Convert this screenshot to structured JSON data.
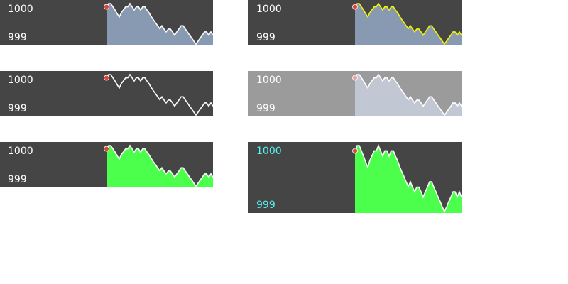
{
  "chart_data": [
    {
      "type": "area",
      "max_label": "1000",
      "min_label": "999",
      "ylim": [
        999,
        1000
      ],
      "fill": "#8899b2",
      "line": "#ffffff",
      "label_color": "#ffffff",
      "background": "#454545",
      "marker_color": "#e0443c",
      "y": [
        0.92,
        1.0,
        1.0,
        0.92,
        0.84,
        0.75,
        0.67,
        0.78,
        0.85,
        0.92,
        0.92,
        1.0,
        0.92,
        0.84,
        0.92,
        0.92,
        0.84,
        0.92,
        0.92,
        0.84,
        0.77,
        0.68,
        0.6,
        0.53,
        0.45,
        0.38,
        0.45,
        0.37,
        0.3,
        0.37,
        0.37,
        0.3,
        0.22,
        0.3,
        0.37,
        0.45,
        0.45,
        0.37,
        0.3,
        0.22,
        0.15,
        0.07,
        0.0,
        0.07,
        0.15,
        0.22,
        0.3,
        0.3,
        0.22,
        0.3,
        0.22
      ]
    },
    {
      "type": "area",
      "max_label": "1000",
      "min_label": "999",
      "ylim": [
        999,
        1000
      ],
      "fill": "#8899b2",
      "line": "#f5f50a",
      "label_color": "#ffffff",
      "background": "#454545",
      "marker_color": "#e0443c",
      "y": [
        0.92,
        1.0,
        1.0,
        0.92,
        0.84,
        0.75,
        0.67,
        0.78,
        0.85,
        0.92,
        0.92,
        1.0,
        0.92,
        0.84,
        0.92,
        0.92,
        0.84,
        0.92,
        0.92,
        0.84,
        0.77,
        0.68,
        0.6,
        0.53,
        0.45,
        0.38,
        0.45,
        0.37,
        0.3,
        0.37,
        0.37,
        0.3,
        0.22,
        0.3,
        0.37,
        0.45,
        0.45,
        0.37,
        0.3,
        0.22,
        0.15,
        0.07,
        0.0,
        0.07,
        0.15,
        0.22,
        0.3,
        0.3,
        0.22,
        0.3,
        0.22
      ]
    },
    {
      "type": "line",
      "max_label": "1000",
      "min_label": "999",
      "ylim": [
        999,
        1000
      ],
      "fill": "none",
      "line": "#ffffff",
      "label_color": "#ffffff",
      "background": "#454545",
      "marker_color": "#e0443c",
      "y": [
        0.92,
        1.0,
        1.0,
        0.92,
        0.84,
        0.75,
        0.67,
        0.78,
        0.85,
        0.92,
        0.92,
        1.0,
        0.92,
        0.84,
        0.92,
        0.92,
        0.84,
        0.92,
        0.92,
        0.84,
        0.77,
        0.68,
        0.6,
        0.53,
        0.45,
        0.38,
        0.45,
        0.37,
        0.3,
        0.37,
        0.37,
        0.3,
        0.22,
        0.3,
        0.37,
        0.45,
        0.45,
        0.37,
        0.3,
        0.22,
        0.15,
        0.07,
        0.0,
        0.07,
        0.15,
        0.22,
        0.3,
        0.3,
        0.22,
        0.3,
        0.22
      ]
    },
    {
      "type": "area",
      "max_label": "1000",
      "min_label": "999",
      "ylim": [
        999,
        1000
      ],
      "fill": "#c1c8d4",
      "line": "#ffffff",
      "label_color": "#ffffff",
      "background": "#9b9b9b",
      "marker_color": "#f0a0a0",
      "y": [
        0.92,
        1.0,
        1.0,
        0.92,
        0.84,
        0.75,
        0.67,
        0.78,
        0.85,
        0.92,
        0.92,
        1.0,
        0.92,
        0.84,
        0.92,
        0.92,
        0.84,
        0.92,
        0.92,
        0.84,
        0.77,
        0.68,
        0.6,
        0.53,
        0.45,
        0.38,
        0.45,
        0.37,
        0.3,
        0.37,
        0.37,
        0.3,
        0.22,
        0.3,
        0.37,
        0.45,
        0.45,
        0.37,
        0.3,
        0.22,
        0.15,
        0.07,
        0.0,
        0.07,
        0.15,
        0.22,
        0.3,
        0.3,
        0.22,
        0.3,
        0.22
      ]
    },
    {
      "type": "area",
      "max_label": "1000",
      "min_label": "999",
      "ylim": [
        999,
        1000
      ],
      "fill": "#4cff4c",
      "line": "#ffffff",
      "label_color": "#ffffff",
      "background": "#454545",
      "marker_color": "#e0443c",
      "y": [
        0.92,
        1.0,
        1.0,
        0.92,
        0.84,
        0.75,
        0.67,
        0.78,
        0.85,
        0.92,
        0.92,
        1.0,
        0.92,
        0.84,
        0.92,
        0.92,
        0.84,
        0.92,
        0.92,
        0.84,
        0.77,
        0.68,
        0.6,
        0.53,
        0.45,
        0.38,
        0.45,
        0.37,
        0.3,
        0.37,
        0.37,
        0.3,
        0.22,
        0.3,
        0.37,
        0.45,
        0.45,
        0.37,
        0.3,
        0.22,
        0.15,
        0.07,
        0.0,
        0.07,
        0.15,
        0.22,
        0.3,
        0.3,
        0.22,
        0.3,
        0.22
      ]
    },
    {
      "type": "area",
      "max_label": "1000",
      "min_label": "999",
      "ylim": [
        999,
        1000
      ],
      "fill": "#4cff4c",
      "line": "#ffffff",
      "label_color": "#55f0f0",
      "background": "#454545",
      "marker_color": "#e0443c",
      "y": [
        0.92,
        1.0,
        1.0,
        0.92,
        0.84,
        0.75,
        0.67,
        0.78,
        0.85,
        0.92,
        0.92,
        1.0,
        0.92,
        0.84,
        0.92,
        0.92,
        0.84,
        0.92,
        0.92,
        0.84,
        0.77,
        0.68,
        0.6,
        0.53,
        0.45,
        0.38,
        0.45,
        0.37,
        0.3,
        0.37,
        0.37,
        0.3,
        0.22,
        0.3,
        0.37,
        0.45,
        0.45,
        0.37,
        0.3,
        0.22,
        0.15,
        0.07,
        0.0,
        0.07,
        0.15,
        0.22,
        0.3,
        0.3,
        0.22,
        0.3,
        0.22
      ]
    }
  ]
}
